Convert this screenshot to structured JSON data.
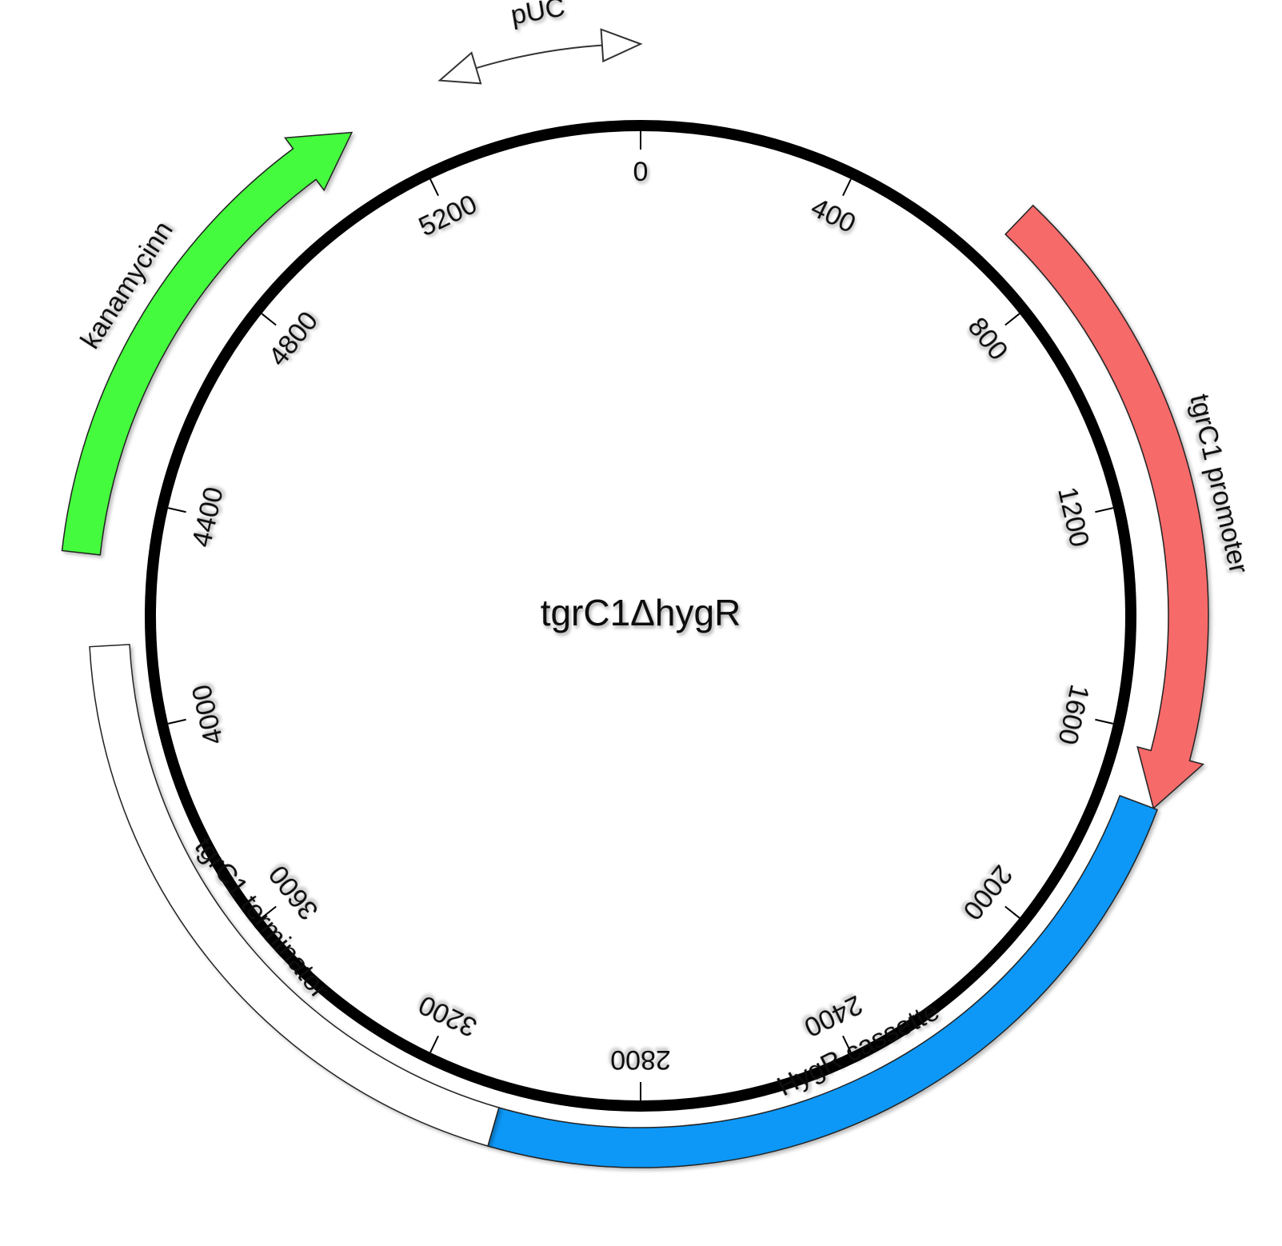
{
  "plasmid": {
    "name": "tgrC1ΔhygR",
    "length": 5600
  },
  "ticks": [
    {
      "pos": 0,
      "label": "0"
    },
    {
      "pos": 400,
      "label": "400"
    },
    {
      "pos": 800,
      "label": "800"
    },
    {
      "pos": 1200,
      "label": "1200"
    },
    {
      "pos": 1600,
      "label": "1600"
    },
    {
      "pos": 2000,
      "label": "2000"
    },
    {
      "pos": 2400,
      "label": "2400"
    },
    {
      "pos": 2800,
      "label": "2800"
    },
    {
      "pos": 3200,
      "label": "3200"
    },
    {
      "pos": 3600,
      "label": "3600"
    },
    {
      "pos": 4000,
      "label": "4000"
    },
    {
      "pos": 4400,
      "label": "4400"
    },
    {
      "pos": 4800,
      "label": "4800"
    },
    {
      "pos": 5200,
      "label": "5200"
    }
  ],
  "features": [
    {
      "id": "tgrc1-promoter",
      "label": "tgrC1 promoter",
      "start": 680,
      "end": 1720,
      "color": "#f76a6a",
      "shape": "arrow-forward"
    },
    {
      "id": "hygr-cassette",
      "label": "HygR cassette",
      "start": 1720,
      "end": 3050,
      "color": "#0898f8",
      "shape": "box"
    },
    {
      "id": "tgrc1-terminator",
      "label": "tgrC1 terminator",
      "start": 3050,
      "end": 4150,
      "color": "#ffffff",
      "shape": "box"
    },
    {
      "id": "kanamycinn",
      "label": "kanamycinn",
      "start": 4300,
      "end": 5120,
      "color": "#44fb3e",
      "shape": "arrow-forward"
    },
    {
      "id": "puc",
      "label": "pUC",
      "start": 5280,
      "end": 5600,
      "color": "#ffffff",
      "shape": "thin-double-arrow"
    }
  ]
}
